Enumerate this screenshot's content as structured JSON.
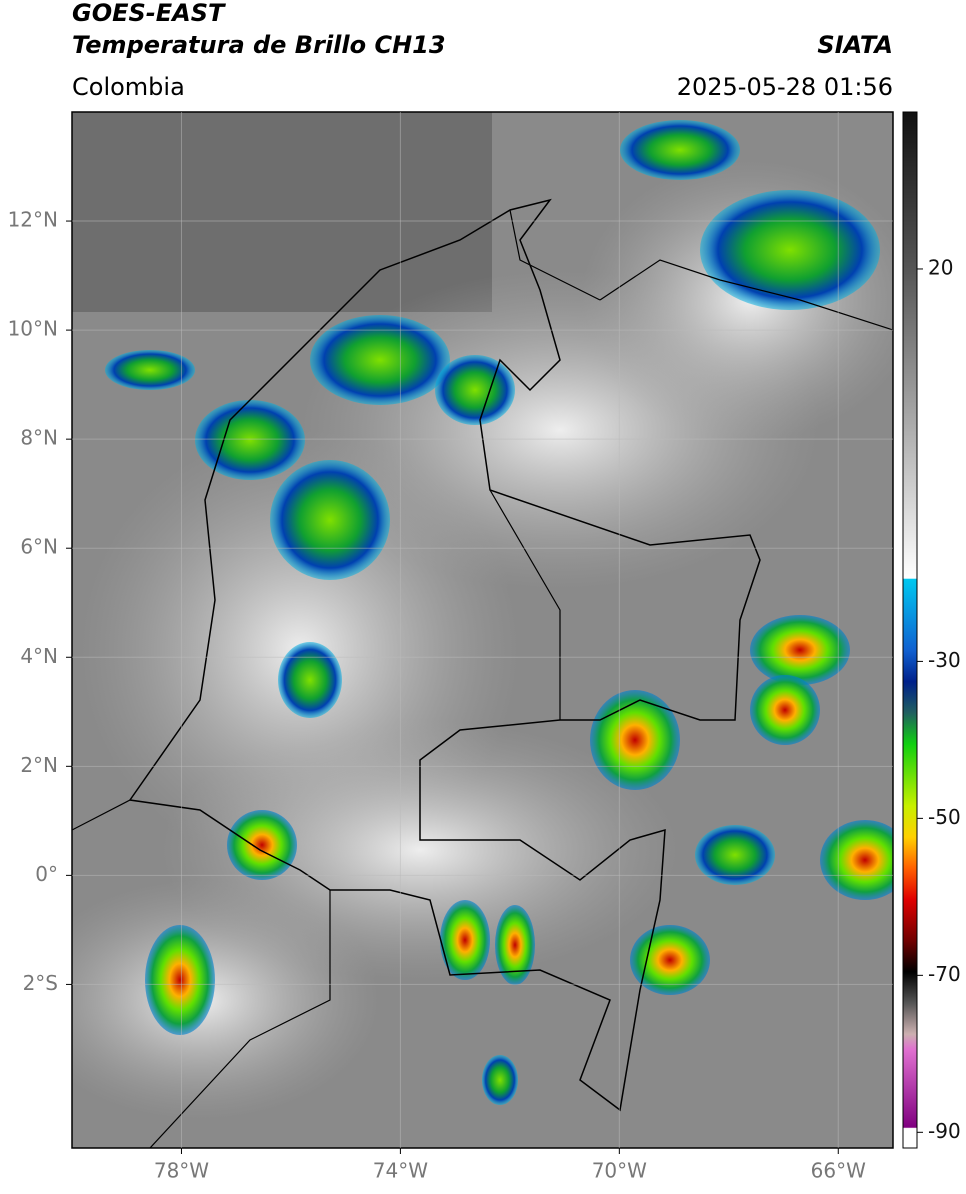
{
  "header": {
    "title": "GOES-EAST",
    "subtitle": "Temperatura de Brillo CH13",
    "source": "SIATA",
    "region": "Colombia",
    "timestamp": "2025-05-28 01:56"
  },
  "map": {
    "lonlim": [
      -80,
      -65
    ],
    "latlim": [
      -5,
      14
    ],
    "lat_ticks": [
      {
        "value": 12,
        "label": "12°N"
      },
      {
        "value": 10,
        "label": "10°N"
      },
      {
        "value": 8,
        "label": "8°N"
      },
      {
        "value": 6,
        "label": "6°N"
      },
      {
        "value": 4,
        "label": "4°N"
      },
      {
        "value": 2,
        "label": "2°N"
      },
      {
        "value": 0,
        "label": "0°"
      },
      {
        "value": -2,
        "label": "2°S"
      }
    ],
    "lon_ticks": [
      {
        "value": -78,
        "label": "78°W"
      },
      {
        "value": -74,
        "label": "74°W"
      },
      {
        "value": -70,
        "label": "70°W"
      },
      {
        "value": -66,
        "label": "66°W"
      }
    ]
  },
  "colorbar": {
    "clim": [
      -92,
      40
    ],
    "ticks": [
      20,
      -30,
      -50,
      -70,
      -90
    ]
  }
}
